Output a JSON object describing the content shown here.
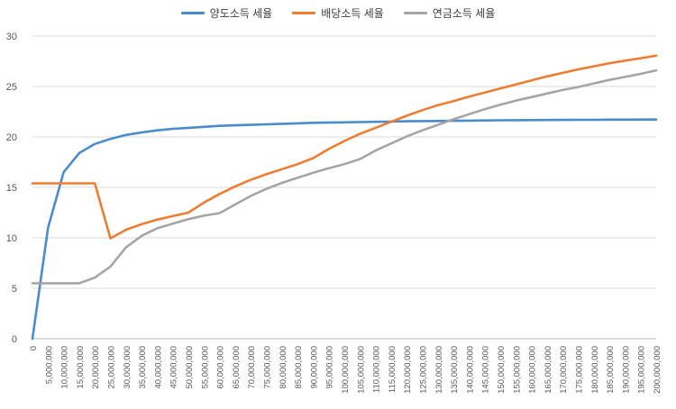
{
  "chart_data": {
    "type": "line",
    "title": "",
    "xlabel": "",
    "ylabel": "",
    "ylim": [
      0,
      30
    ],
    "yticks": [
      0,
      5,
      10,
      15,
      20,
      25,
      30
    ],
    "grid": "horizontal",
    "legend": "top-center",
    "categories": [
      "0",
      "5,000,000",
      "10,000,000",
      "15,000,000",
      "20,000,000",
      "25,000,000",
      "30,000,000",
      "35,000,000",
      "40,000,000",
      "45,000,000",
      "50,000,000",
      "55,000,000",
      "60,000,000",
      "65,000,000",
      "70,000,000",
      "75,000,000",
      "80,000,000",
      "85,000,000",
      "90,000,000",
      "95,000,000",
      "100,000,000",
      "105,000,000",
      "110,000,000",
      "115,000,000",
      "120,000,000",
      "125,000,000",
      "130,000,000",
      "135,000,000",
      "140,000,000",
      "145,000,000",
      "150,000,000",
      "155,000,000",
      "160,000,000",
      "165,000,000",
      "170,000,000",
      "175,000,000",
      "180,000,000",
      "185,000,000",
      "190,000,000",
      "195,000,000",
      "200,000,000"
    ],
    "series": [
      {
        "name": "양도소득 세율",
        "color": "#4a8ccb",
        "values": [
          0,
          11.0,
          16.5,
          18.4,
          19.3,
          19.8,
          20.2,
          20.45,
          20.65,
          20.8,
          20.9,
          21.0,
          21.1,
          21.15,
          21.2,
          21.25,
          21.3,
          21.35,
          21.4,
          21.42,
          21.45,
          21.47,
          21.5,
          21.52,
          21.55,
          21.57,
          21.58,
          21.6,
          21.62,
          21.63,
          21.65,
          21.66,
          21.67,
          21.68,
          21.69,
          21.7,
          21.7,
          21.71,
          21.71,
          21.72,
          21.72
        ]
      },
      {
        "name": "배당소득 세율",
        "color": "#ed7d31",
        "values": [
          15.4,
          15.4,
          15.4,
          15.4,
          15.4,
          9.95,
          10.8,
          11.35,
          11.8,
          12.15,
          12.5,
          13.5,
          14.35,
          15.1,
          15.75,
          16.3,
          16.8,
          17.3,
          17.9,
          18.8,
          19.6,
          20.3,
          20.9,
          21.5,
          22.1,
          22.65,
          23.15,
          23.55,
          24.0,
          24.4,
          24.8,
          25.2,
          25.6,
          26.0,
          26.35,
          26.7,
          27.0,
          27.3,
          27.55,
          27.8,
          28.05
        ]
      },
      {
        "name": "연금소득 세율",
        "color": "#a5a5a5",
        "values": [
          5.5,
          5.5,
          5.5,
          5.5,
          6.05,
          7.15,
          9.05,
          10.2,
          10.95,
          11.4,
          11.85,
          12.2,
          12.45,
          13.3,
          14.15,
          14.85,
          15.45,
          15.95,
          16.45,
          16.9,
          17.3,
          17.8,
          18.65,
          19.35,
          20.05,
          20.65,
          21.2,
          21.75,
          22.25,
          22.75,
          23.2,
          23.6,
          23.95,
          24.3,
          24.65,
          24.95,
          25.3,
          25.65,
          25.95,
          26.25,
          26.6
        ]
      }
    ]
  }
}
